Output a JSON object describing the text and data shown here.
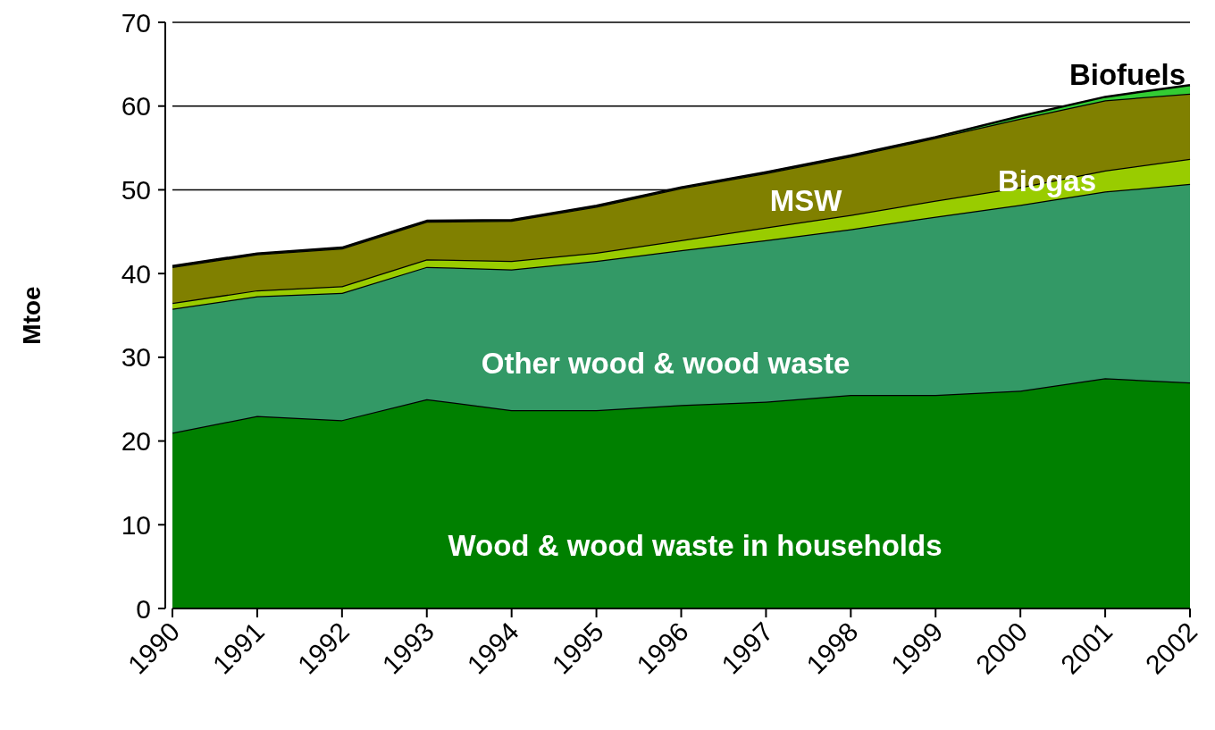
{
  "chart_data": {
    "type": "area",
    "stacked": true,
    "ylabel": "Mtoe",
    "categories": [
      "1990",
      "1991",
      "1992",
      "1993",
      "1994",
      "1995",
      "1996",
      "1997",
      "1998",
      "1999",
      "2000",
      "2001",
      "2002"
    ],
    "series": [
      {
        "name": "Wood & wood waste in households",
        "color": "#008000",
        "values": [
          21,
          23,
          22.5,
          25,
          23.7,
          23.7,
          24.3,
          24.7,
          25.5,
          25.5,
          26,
          27.5,
          27
        ]
      },
      {
        "name": "Other wood & wood waste",
        "color": "#339966",
        "values": [
          14.8,
          14.3,
          15.2,
          15.8,
          16.8,
          17.8,
          18.5,
          19.3,
          19.8,
          21.3,
          22.2,
          22.3,
          23.7
        ]
      },
      {
        "name": "Biogas",
        "color": "#99cc00",
        "values": [
          0.7,
          0.7,
          0.8,
          0.9,
          1.0,
          1.0,
          1.2,
          1.5,
          1.7,
          1.9,
          2.1,
          2.5,
          3.0
        ]
      },
      {
        "name": "MSW",
        "color": "#808000",
        "values": [
          4.3,
          4.3,
          4.5,
          4.5,
          4.8,
          5.5,
          6.2,
          6.5,
          7.0,
          7.5,
          8.2,
          8.4,
          7.8
        ]
      },
      {
        "name": "Biofuels",
        "color": "#33cc33",
        "values": [
          0.1,
          0.1,
          0.1,
          0.1,
          0.1,
          0.1,
          0.1,
          0.1,
          0.1,
          0.1,
          0.3,
          0.4,
          1.0
        ]
      }
    ],
    "ylim": [
      0,
      70
    ],
    "yticks": [
      0,
      10,
      20,
      30,
      40,
      50,
      60,
      70
    ],
    "grid": "y"
  }
}
